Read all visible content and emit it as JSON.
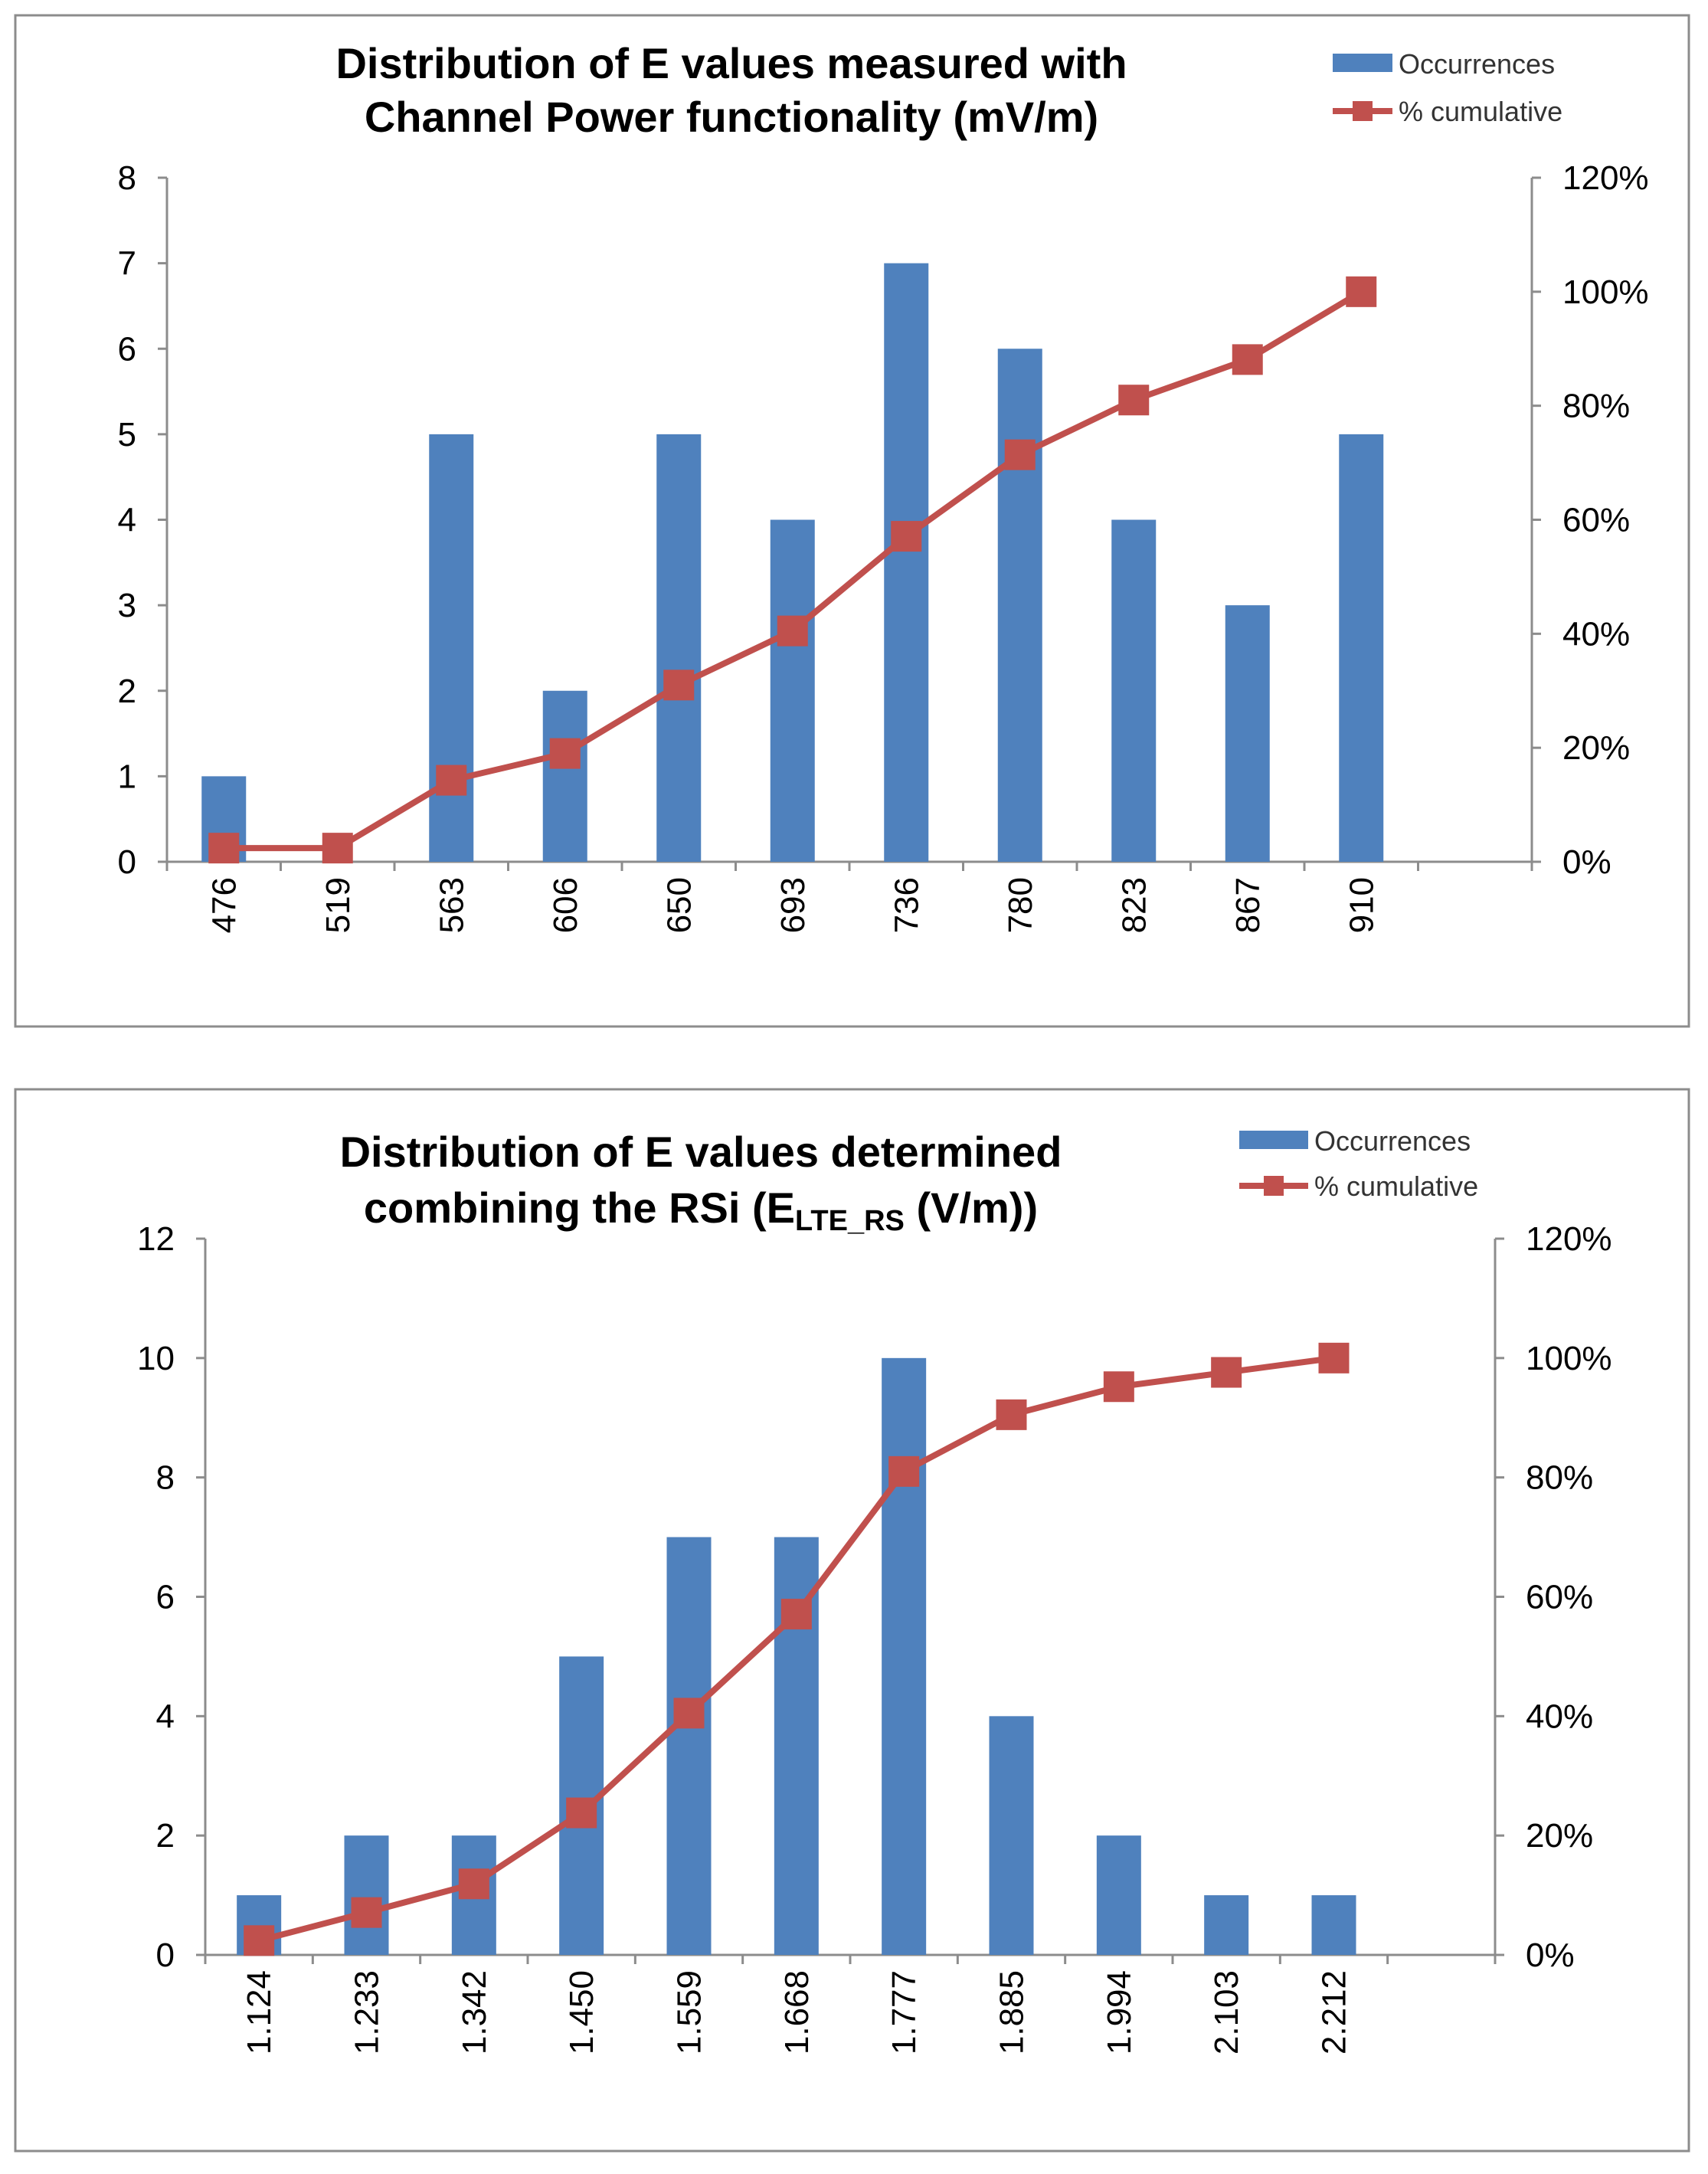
{
  "charts": [
    {
      "title_line1": "Distribution of E values measured with",
      "title_line2": "Channel Power functionality (mV/m)",
      "legend": {
        "bars": "Occurrences",
        "line": "% cumulative"
      },
      "colors": {
        "bar": "#4f81bd",
        "line": "#c0504d",
        "frame": "#8c8c8c"
      }
    },
    {
      "title_line1": "Distribution of E values determined",
      "title_line2_prefix": "combining the RSi (E",
      "title_line2_sub": "LTE_RS",
      "title_line2_suffix": " (V/m))",
      "legend": {
        "bars": "Occurrences",
        "line": "% cumulative"
      },
      "colors": {
        "bar": "#4f81bd",
        "line": "#c0504d",
        "frame": "#8c8c8c"
      }
    }
  ],
  "chart_data": [
    {
      "type": "bar",
      "title": "Distribution of E values measured with Channel Power functionality (mV/m)",
      "categories": [
        "476",
        "519",
        "563",
        "606",
        "650",
        "693",
        "736",
        "780",
        "823",
        "867",
        "910"
      ],
      "series": [
        {
          "name": "Occurrences",
          "axis": "left",
          "type": "bar",
          "values": [
            1,
            0,
            5,
            2,
            5,
            4,
            7,
            6,
            4,
            3,
            5
          ]
        },
        {
          "name": "% cumulative",
          "axis": "right",
          "type": "line",
          "values": [
            2.4,
            2.4,
            14.3,
            19.0,
            31.0,
            40.5,
            57.1,
            71.4,
            81.0,
            88.1,
            100
          ]
        }
      ],
      "ylim_left": [
        0,
        8
      ],
      "yticks_left": [
        "0",
        "1",
        "2",
        "3",
        "4",
        "5",
        "6",
        "7",
        "8"
      ],
      "ylim_right": [
        0,
        120
      ],
      "yticks_right": [
        "0%",
        "20%",
        "40%",
        "60%",
        "80%",
        "100%",
        "120%"
      ],
      "grid": false,
      "legend_position": "top-right"
    },
    {
      "type": "bar",
      "title": "Distribution of E values determined combining the RSi (ELTE_RS (V/m))",
      "categories": [
        "1.124",
        "1.233",
        "1.342",
        "1.450",
        "1.559",
        "1.668",
        "1.777",
        "1.885",
        "1.994",
        "2.103",
        "2.212"
      ],
      "series": [
        {
          "name": "Occurrences",
          "axis": "left",
          "type": "bar",
          "values": [
            1,
            2,
            2,
            5,
            7,
            7,
            10,
            4,
            2,
            1,
            1
          ]
        },
        {
          "name": "% cumulative",
          "axis": "right",
          "type": "line",
          "values": [
            2.4,
            7.1,
            11.9,
            23.8,
            40.5,
            57.1,
            81.0,
            90.5,
            95.2,
            97.6,
            100
          ]
        }
      ],
      "ylim_left": [
        0,
        12
      ],
      "yticks_left": [
        "0",
        "2",
        "4",
        "6",
        "8",
        "10",
        "12"
      ],
      "ylim_right": [
        0,
        120
      ],
      "yticks_right": [
        "0%",
        "20%",
        "40%",
        "60%",
        "80%",
        "100%",
        "120%"
      ],
      "grid": false,
      "legend_position": "top-right"
    }
  ]
}
